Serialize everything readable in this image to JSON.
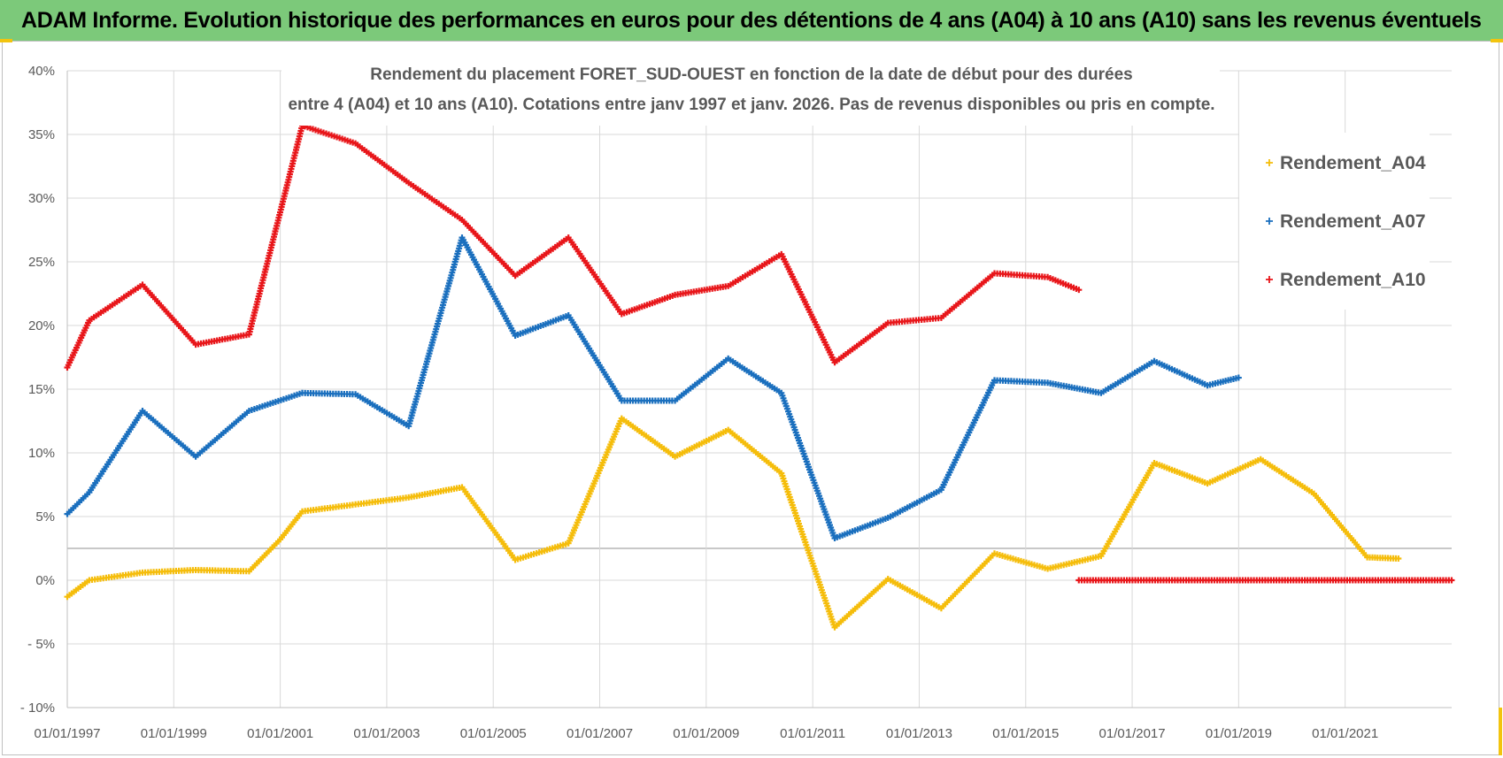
{
  "header": {
    "title": "ADAM Informe. Evolution historique des performances en euros pour des détentions de 4 ans (A04) à 10 ans (A10) sans les revenus éventuels"
  },
  "chart_data": {
    "type": "scatter",
    "title_line1": "Rendement du placement FORET_SUD-OUEST en fonction de la date de début pour des durées",
    "title_line2": "entre 4 (A04) et 10 ans (A10).  Cotations entre janv 1997 et janv. 2026. Pas de revenus disponibles ou pris en compte.",
    "x_ticks": [
      "01/01/1997",
      "01/01/1999",
      "01/01/2001",
      "01/01/2003",
      "01/01/2005",
      "01/01/2007",
      "01/01/2009",
      "01/01/2011",
      "01/01/2013",
      "01/01/2015",
      "01/01/2017",
      "01/01/2019",
      "01/01/2021"
    ],
    "xlim": [
      "01/01/1997",
      "01/01/2023"
    ],
    "y_ticks": [
      "40%",
      "35%",
      "30%",
      "25%",
      "20%",
      "15%",
      "10%",
      "5%",
      "0%",
      "- 5%",
      "- 10%"
    ],
    "ylim": [
      -10,
      40
    ],
    "grid": true,
    "legend_position": "right",
    "series": [
      {
        "name": "Rendement_A04",
        "color": "#f5bd0b",
        "marker": "+",
        "points": [
          [
            "1997-01-01",
            -1.3
          ],
          [
            "1997-06-01",
            0.0
          ],
          [
            "1998-06-01",
            0.6
          ],
          [
            "1999-06-01",
            0.8
          ],
          [
            "2000-06-01",
            0.7
          ],
          [
            "2001-01-01",
            3.2
          ],
          [
            "2001-06-01",
            5.4
          ],
          [
            "2003-06-01",
            6.5
          ],
          [
            "2004-06-01",
            7.3
          ],
          [
            "2005-06-01",
            1.6
          ],
          [
            "2006-06-01",
            2.9
          ],
          [
            "2007-06-01",
            12.7
          ],
          [
            "2008-06-01",
            9.7
          ],
          [
            "2009-06-01",
            11.8
          ],
          [
            "2010-06-01",
            8.4
          ],
          [
            "2011-06-01",
            -3.7
          ],
          [
            "2012-06-01",
            0.1
          ],
          [
            "2013-06-01",
            -2.2
          ],
          [
            "2014-06-01",
            2.1
          ],
          [
            "2015-06-01",
            0.9
          ],
          [
            "2016-06-01",
            1.9
          ],
          [
            "2017-06-01",
            9.2
          ],
          [
            "2018-06-01",
            7.6
          ],
          [
            "2019-06-01",
            9.5
          ],
          [
            "2020-06-01",
            6.8
          ],
          [
            "2021-06-01",
            1.8
          ],
          [
            "2022-01-01",
            1.7
          ]
        ]
      },
      {
        "name": "Rendement_A07",
        "color": "#1a6fbe",
        "marker": "+",
        "points": [
          [
            "1997-01-01",
            5.2
          ],
          [
            "1997-06-01",
            6.9
          ],
          [
            "1998-06-01",
            13.3
          ],
          [
            "1999-06-01",
            9.7
          ],
          [
            "2000-06-01",
            13.3
          ],
          [
            "2001-06-01",
            14.7
          ],
          [
            "2002-06-01",
            14.6
          ],
          [
            "2003-06-01",
            12.1
          ],
          [
            "2004-06-01",
            26.9
          ],
          [
            "2005-06-01",
            19.2
          ],
          [
            "2006-06-01",
            20.8
          ],
          [
            "2007-06-01",
            14.1
          ],
          [
            "2008-06-01",
            14.1
          ],
          [
            "2009-06-01",
            17.4
          ],
          [
            "2010-06-01",
            14.7
          ],
          [
            "2011-06-01",
            3.3
          ],
          [
            "2012-06-01",
            4.9
          ],
          [
            "2013-06-01",
            7.1
          ],
          [
            "2014-06-01",
            15.7
          ],
          [
            "2015-06-01",
            15.5
          ],
          [
            "2016-06-01",
            14.7
          ],
          [
            "2017-06-01",
            17.2
          ],
          [
            "2018-06-01",
            15.3
          ],
          [
            "2019-01-01",
            15.9
          ]
        ]
      },
      {
        "name": "Rendement_A10",
        "color": "#e8161a",
        "marker": "+",
        "points": [
          [
            "1997-01-01",
            16.7
          ],
          [
            "1997-06-01",
            20.4
          ],
          [
            "1998-06-01",
            23.2
          ],
          [
            "1999-06-01",
            18.5
          ],
          [
            "2000-06-01",
            19.3
          ],
          [
            "2001-06-01",
            35.7
          ],
          [
            "2002-06-01",
            34.3
          ],
          [
            "2003-06-01",
            31.2
          ],
          [
            "2004-06-01",
            28.3
          ],
          [
            "2005-06-01",
            23.9
          ],
          [
            "2006-06-01",
            26.9
          ],
          [
            "2007-06-01",
            20.9
          ],
          [
            "2008-06-01",
            22.4
          ],
          [
            "2009-06-01",
            23.1
          ],
          [
            "2010-06-01",
            25.6
          ],
          [
            "2011-06-01",
            17.1
          ],
          [
            "2012-06-01",
            20.2
          ],
          [
            "2013-06-01",
            20.6
          ],
          [
            "2014-06-01",
            24.1
          ],
          [
            "2015-06-01",
            23.8
          ],
          [
            "2016-01-01",
            22.8
          ]
        ]
      },
      {
        "name": "",
        "color": "#e8161a",
        "marker": "+",
        "points": [
          [
            "2016-01-01",
            0.0
          ],
          [
            "2023-01-01",
            0.0
          ]
        ]
      }
    ]
  }
}
